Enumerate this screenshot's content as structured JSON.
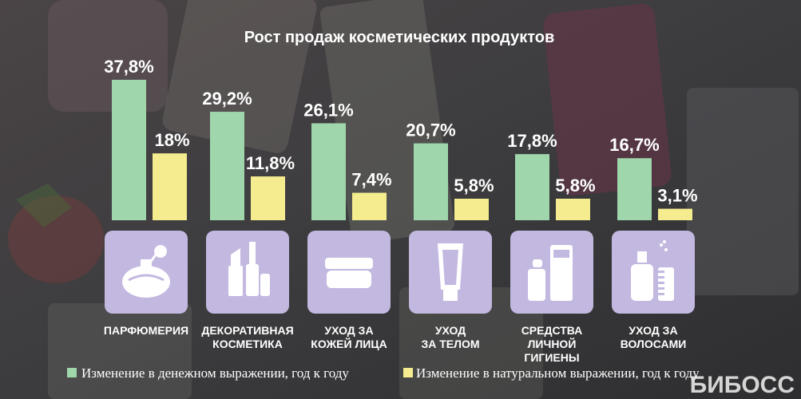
{
  "chart_data": {
    "type": "bar",
    "title": "Рост продаж косметических продуктов",
    "unit": "%",
    "categories": [
      [
        "ПАРФЮМЕРИЯ"
      ],
      [
        "ДЕКОРАТИВНАЯ",
        "КОСМЕТИКА"
      ],
      [
        "УХОД ЗА",
        "КОЖЕЙ ЛИЦА"
      ],
      [
        "УХОД",
        "ЗА ТЕЛОМ"
      ],
      [
        "СРЕДСТВА",
        "ЛИЧНОЙ",
        "ГИГИЕНЫ"
      ],
      [
        "УХОД ЗА",
        "ВОЛОСАМИ"
      ]
    ],
    "category_icons": [
      "perfume-bottle-icon",
      "lipstick-mascara-icon",
      "cream-jar-icon",
      "lotion-tube-icon",
      "deodorant-bottles-icon",
      "spray-comb-icon"
    ],
    "series": [
      {
        "name": "Изменение в денежном выражении, год к году",
        "color": "#9fd6ab",
        "values": [
          37.8,
          29.2,
          26.1,
          20.7,
          17.8,
          16.7
        ],
        "labels": [
          "37,8%",
          "29,2%",
          "26,1%",
          "20,7%",
          "17,8%",
          "16,7%"
        ]
      },
      {
        "name": "Изменение в натуральном выражении, год к году",
        "color": "#f4ec8e",
        "values": [
          18,
          11.8,
          7.4,
          5.8,
          5.8,
          3.1
        ],
        "labels": [
          "18%",
          "11,8%",
          "7,4%",
          "5,8%",
          "5,8%",
          "3,1%"
        ]
      }
    ],
    "ylim": [
      0,
      40
    ],
    "grid": false,
    "legend": "bottom-left",
    "icon_tile_color": "#c3b8e0"
  },
  "brand": "БИБОСС"
}
